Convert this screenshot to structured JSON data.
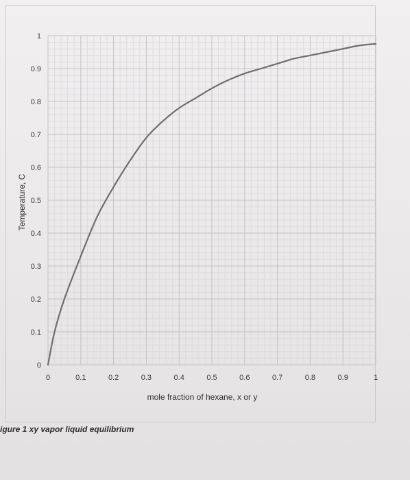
{
  "chart_data": {
    "type": "line",
    "xlabel": "mole fraction of hexane, x or y",
    "ylabel": "Temperature, C",
    "xlim": [
      0,
      1
    ],
    "ylim": [
      0,
      1
    ],
    "x_ticks": [
      "0",
      "0.1",
      "0.2",
      "0.3",
      "0.4",
      "0.5",
      "0.6",
      "0.7",
      "0.8",
      "0.9",
      "1"
    ],
    "y_ticks": [
      "0",
      "0.1",
      "0.2",
      "0.3",
      "0.4",
      "0.5",
      "0.6",
      "0.7",
      "0.8",
      "0.9",
      "1"
    ],
    "grid": true,
    "series": [
      {
        "color": "#6e6e6e",
        "x": [
          0,
          0.02,
          0.05,
          0.1,
          0.15,
          0.2,
          0.25,
          0.3,
          0.35,
          0.4,
          0.45,
          0.5,
          0.55,
          0.6,
          0.65,
          0.7,
          0.75,
          0.8,
          0.85,
          0.9,
          0.95,
          1.0
        ],
        "y": [
          0,
          0.1,
          0.2,
          0.33,
          0.45,
          0.54,
          0.62,
          0.69,
          0.74,
          0.78,
          0.81,
          0.84,
          0.865,
          0.885,
          0.9,
          0.915,
          0.93,
          0.94,
          0.95,
          0.96,
          0.97,
          0.975
        ]
      }
    ]
  },
  "caption": "igure 1 xy vapor liquid equilibrium"
}
